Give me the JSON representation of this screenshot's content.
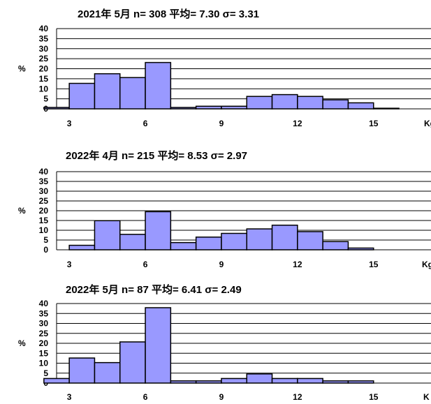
{
  "chart_data": [
    {
      "type": "bar",
      "title": "2021年 5月  n= 308 平均= 7.30  σ= 3.31",
      "ylabel": "%",
      "xlabel": "Kg",
      "x": [
        2.5,
        3.5,
        4.5,
        5.5,
        6.5,
        7.5,
        8.5,
        9.5,
        10.5,
        11.5,
        12.5,
        13.5,
        14.5,
        15.5
      ],
      "values": [
        0.7,
        12.7,
        17.5,
        15.6,
        23.1,
        0.7,
        1.3,
        1.3,
        6.2,
        7.1,
        6.2,
        4.5,
        3.0,
        0.3
      ],
      "xticks": [
        3,
        6,
        9,
        12,
        15
      ],
      "yticks": [
        0,
        5,
        10,
        15,
        20,
        25,
        30,
        35,
        40
      ],
      "ylim": [
        0,
        40
      ],
      "xlim": [
        2.5,
        17.5
      ],
      "grid": true,
      "color": "#9999FF"
    },
    {
      "type": "bar",
      "title": "2022年 4月  n= 215 平均= 8.53  σ= 2.97",
      "ylabel": "%",
      "xlabel": "Kg",
      "x": [
        3.5,
        4.5,
        5.5,
        6.5,
        7.5,
        8.5,
        9.5,
        10.5,
        11.5,
        12.5,
        13.5,
        14.5
      ],
      "values": [
        2.3,
        14.9,
        7.9,
        19.5,
        3.7,
        6.5,
        8.4,
        10.7,
        12.6,
        9.3,
        4.2,
        0.9
      ],
      "xticks": [
        3,
        6,
        9,
        12,
        15
      ],
      "yticks": [
        0,
        5,
        10,
        15,
        20,
        25,
        30,
        35,
        40
      ],
      "ylim": [
        0,
        40
      ],
      "xlim": [
        2.5,
        17.5
      ],
      "grid": true,
      "color": "#9999FF"
    },
    {
      "type": "bar",
      "title": "2022年  5月  n= 87 平均= 6.41  σ= 2.49",
      "ylabel": "%",
      "xlabel": "K",
      "x": [
        2.5,
        3.5,
        4.5,
        5.5,
        6.5,
        7.5,
        8.5,
        9.5,
        10.5,
        11.5,
        12.5,
        13.5,
        14.5
      ],
      "values": [
        2.3,
        12.6,
        10.3,
        20.7,
        37.9,
        1.1,
        1.1,
        2.3,
        4.6,
        2.3,
        2.3,
        1.1,
        1.1
      ],
      "xticks": [
        3,
        6,
        9,
        12,
        15
      ],
      "yticks": [
        0,
        5,
        10,
        15,
        20,
        25,
        30,
        35,
        40
      ],
      "ylim": [
        0,
        40
      ],
      "xlim": [
        2.5,
        17.5
      ],
      "grid": true,
      "color": "#9999FF"
    }
  ]
}
